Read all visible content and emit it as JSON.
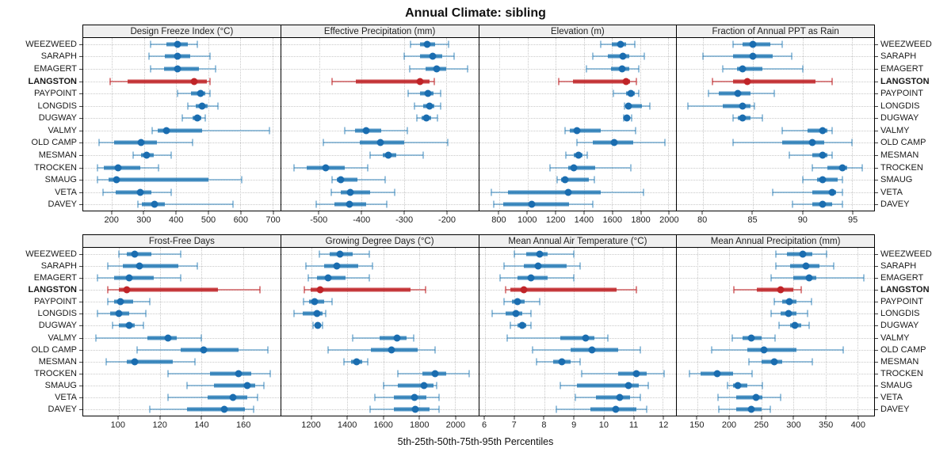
{
  "title": "Annual Climate: sibling",
  "xlabel": "5th-25th-50th-75th-95th Percentiles",
  "chart_data": {
    "type": "dot-whisker-percentile-trellis",
    "title": "Annual Climate: sibling",
    "xlabel": "5th-25th-50th-75th-95th Percentiles",
    "percentile_levels": [
      5,
      25,
      50,
      75,
      95
    ],
    "layout": {
      "rows": 2,
      "cols": 4,
      "grid": "dotted",
      "legend": "none"
    },
    "colors": {
      "series_dot": "#1a6db0",
      "series_box": "rgba(31,119,180,0.8)",
      "series_whisker": "rgba(31,119,180,0.45)",
      "highlight_dot": "#c02428",
      "highlight_box": "rgba(192,36,40,0.85)",
      "highlight_whisker": "rgba(192,36,40,0.55)",
      "strip_bg": "#f0f0f0",
      "grid": "#c9c9c9"
    },
    "sites": [
      "WEEZWEED",
      "SARAPH",
      "EMAGERT",
      "LANGSTON",
      "PAYPOINT",
      "LONGDIS",
      "DUGWAY",
      "VALMY",
      "OLD CAMP",
      "MESMAN",
      "TROCKEN",
      "SMAUG",
      "VETA",
      "DAVEY"
    ],
    "highlight_site": "LANGSTON",
    "panels": [
      {
        "title": "Design Freeze Index (°C)",
        "xlim": [
          110,
          725
        ],
        "ticks": [
          200,
          300,
          400,
          500,
          600,
          700
        ],
        "values": [
          [
            320,
            370,
            405,
            437,
            465
          ],
          [
            315,
            365,
            405,
            445,
            505
          ],
          [
            320,
            362,
            405,
            470,
            523
          ],
          [
            195,
            248,
            455,
            495,
            505
          ],
          [
            405,
            447,
            475,
            490,
            505
          ],
          [
            437,
            462,
            480,
            497,
            530
          ],
          [
            420,
            450,
            466,
            478,
            490
          ],
          [
            325,
            342,
            370,
            480,
            690
          ],
          [
            160,
            207,
            290,
            340,
            450
          ],
          [
            265,
            290,
            307,
            330,
            385
          ],
          [
            155,
            175,
            220,
            288,
            345
          ],
          [
            155,
            190,
            215,
            500,
            605
          ],
          [
            172,
            212,
            287,
            322,
            385
          ],
          [
            280,
            292,
            333,
            365,
            578
          ]
        ]
      },
      {
        "title": "Effective Precipitation (mm)",
        "xlim": [
          -590,
          -125
        ],
        "ticks": [
          -500,
          -400,
          -300,
          -200
        ],
        "values": [
          [
            -285,
            -262,
            -245,
            -226,
            -196
          ],
          [
            -300,
            -262,
            -232,
            -210,
            -182
          ],
          [
            -286,
            -250,
            -224,
            -200,
            -150
          ],
          [
            -470,
            -413,
            -262,
            -240,
            -228
          ],
          [
            -290,
            -262,
            -243,
            -230,
            -214
          ],
          [
            -276,
            -254,
            -240,
            -229,
            -214
          ],
          [
            -270,
            -258,
            -247,
            -237,
            -222
          ],
          [
            -440,
            -416,
            -390,
            -354,
            -292
          ],
          [
            -490,
            -405,
            -355,
            -300,
            -197
          ],
          [
            -380,
            -350,
            -337,
            -318,
            -255
          ],
          [
            -560,
            -530,
            -485,
            -440,
            -385
          ],
          [
            -470,
            -458,
            -450,
            -410,
            -345
          ],
          [
            -472,
            -450,
            -427,
            -380,
            -322
          ],
          [
            -508,
            -465,
            -428,
            -390,
            -340
          ]
        ]
      },
      {
        "title": "Elevation (m)",
        "xlim": [
          655,
          2055
        ],
        "ticks": [
          800,
          1000,
          1200,
          1400,
          1600,
          1800,
          2000
        ],
        "values": [
          [
            1520,
            1600,
            1660,
            1700,
            1760
          ],
          [
            1460,
            1570,
            1675,
            1720,
            1830
          ],
          [
            1420,
            1590,
            1670,
            1720,
            1790
          ],
          [
            1220,
            1320,
            1700,
            1725,
            1770
          ],
          [
            1610,
            1700,
            1735,
            1760,
            1790
          ],
          [
            1690,
            1700,
            1718,
            1810,
            1870
          ],
          [
            1680,
            1692,
            1702,
            1716,
            1736
          ],
          [
            1265,
            1300,
            1350,
            1520,
            1765
          ],
          [
            1350,
            1460,
            1615,
            1750,
            1975
          ],
          [
            1270,
            1330,
            1360,
            1392,
            1422
          ],
          [
            1160,
            1290,
            1330,
            1480,
            1730
          ],
          [
            1212,
            1240,
            1265,
            1437,
            1474
          ],
          [
            744,
            862,
            1287,
            1517,
            1824
          ],
          [
            757,
            828,
            1029,
            1296,
            1461
          ]
        ]
      },
      {
        "title": "Fraction of Annual PPT as Rain",
        "xlim": [
          77.4,
          97.2
        ],
        "ticks": [
          80,
          85,
          90,
          95
        ],
        "values": [
          [
            83,
            84,
            85,
            86.8,
            88
          ],
          [
            80,
            83,
            85,
            87,
            88.9
          ],
          [
            82,
            83.4,
            84,
            86,
            90
          ],
          [
            81,
            83,
            84.5,
            91.3,
            93
          ],
          [
            80.6,
            81.6,
            83.5,
            84.8,
            87.2
          ],
          [
            78.5,
            82,
            84,
            84.8,
            85.2
          ],
          [
            83,
            83.5,
            84,
            84.8,
            86
          ],
          [
            88,
            90.5,
            92,
            92.5,
            93
          ],
          [
            83,
            88,
            91,
            92.2,
            95
          ],
          [
            88.7,
            91,
            92,
            92.5,
            93
          ],
          [
            91,
            92.5,
            94,
            94.5,
            96
          ],
          [
            90,
            91.5,
            92,
            93.5,
            94
          ],
          [
            87,
            91,
            93,
            93.4,
            94
          ],
          [
            89,
            91,
            92,
            93,
            94
          ]
        ]
      },
      {
        "title": "Frost-Free Days",
        "xlim": [
          83,
          178
        ],
        "ticks": [
          100,
          120,
          140,
          160
        ],
        "values": [
          [
            100,
            104,
            108,
            116,
            130
          ],
          [
            95,
            102,
            110,
            129,
            138
          ],
          [
            90,
            98,
            105,
            117,
            130
          ],
          [
            95,
            100,
            104,
            148,
            168
          ],
          [
            95,
            98,
            101,
            107,
            115
          ],
          [
            90,
            96,
            100,
            105,
            113
          ],
          [
            97,
            100,
            105,
            108,
            112
          ],
          [
            89,
            114,
            124,
            128,
            140
          ],
          [
            109,
            130,
            141,
            158,
            172
          ],
          [
            94,
            104,
            108,
            126,
            137
          ],
          [
            124,
            144,
            158,
            164,
            173
          ],
          [
            133,
            146,
            162,
            166,
            170
          ],
          [
            124,
            143,
            155,
            162,
            167
          ],
          [
            115,
            133,
            151,
            161,
            165
          ]
        ]
      },
      {
        "title": "Growing Degree Days (°C)",
        "xlim": [
          1030,
          2130
        ],
        "ticks": [
          1200,
          1400,
          1600,
          1800,
          2000
        ],
        "values": [
          [
            1245,
            1300,
            1360,
            1430,
            1520
          ],
          [
            1170,
            1270,
            1340,
            1460,
            1540
          ],
          [
            1180,
            1230,
            1290,
            1390,
            1520
          ],
          [
            1160,
            1195,
            1246,
            1750,
            1835
          ],
          [
            1157,
            1184,
            1216,
            1268,
            1312
          ],
          [
            1100,
            1150,
            1228,
            1262,
            1280
          ],
          [
            1206,
            1222,
            1234,
            1250,
            1261
          ],
          [
            1430,
            1580,
            1675,
            1730,
            1770
          ],
          [
            1290,
            1530,
            1645,
            1790,
            1890
          ],
          [
            1380,
            1420,
            1450,
            1480,
            1515
          ],
          [
            1680,
            1820,
            1890,
            1950,
            2080
          ],
          [
            1600,
            1680,
            1825,
            1880,
            1900
          ],
          [
            1555,
            1660,
            1775,
            1840,
            1910
          ],
          [
            1525,
            1660,
            1780,
            1860,
            1910
          ]
        ]
      },
      {
        "title": "Mean Annual Air Temperature (°C)",
        "xlim": [
          5.8,
          12.45
        ],
        "ticks": [
          6,
          7,
          8,
          9,
          10,
          11,
          12
        ],
        "values": [
          [
            7.0,
            7.4,
            7.85,
            8.1,
            9.0
          ],
          [
            6.65,
            7.3,
            7.8,
            8.75,
            9.2
          ],
          [
            6.5,
            7.1,
            7.55,
            8.1,
            9.0
          ],
          [
            6.7,
            6.85,
            7.3,
            10.45,
            11.1
          ],
          [
            6.65,
            6.9,
            7.1,
            7.35,
            7.85
          ],
          [
            6.25,
            6.7,
            7.05,
            7.25,
            7.55
          ],
          [
            6.85,
            7.1,
            7.25,
            7.4,
            7.55
          ],
          [
            6.75,
            8.55,
            9.4,
            9.7,
            10.15
          ],
          [
            7.6,
            8.9,
            9.6,
            10.5,
            11.25
          ],
          [
            7.75,
            8.3,
            8.6,
            8.9,
            9.2
          ],
          [
            9.25,
            10.5,
            11.1,
            11.45,
            12.05
          ],
          [
            8.55,
            9.1,
            10.85,
            11.2,
            11.5
          ],
          [
            9.05,
            9.75,
            10.55,
            10.9,
            11.25
          ],
          [
            8.4,
            9.55,
            10.4,
            11.1,
            11.45
          ]
        ]
      },
      {
        "title": "Mean Annual Precipitation (mm)",
        "xlim": [
          118,
          426
        ],
        "ticks": [
          150,
          200,
          250,
          300,
          350,
          400
        ],
        "values": [
          [
            272,
            290,
            315,
            330,
            352
          ],
          [
            272,
            295,
            320,
            340,
            363
          ],
          [
            265,
            300,
            325,
            336,
            410
          ],
          [
            207,
            243,
            280,
            300,
            312
          ],
          [
            270,
            282,
            293,
            305,
            328
          ],
          [
            265,
            280,
            292,
            305,
            322
          ],
          [
            278,
            295,
            302,
            312,
            325
          ],
          [
            204,
            220,
            234,
            250,
            271
          ],
          [
            172,
            228,
            254,
            305,
            378
          ],
          [
            230,
            250,
            270,
            282,
            330
          ],
          [
            138,
            155,
            181,
            205,
            235
          ],
          [
            197,
            205,
            213,
            228,
            252
          ],
          [
            182,
            210,
            242,
            252,
            280
          ],
          [
            183,
            210,
            234,
            250,
            264
          ]
        ]
      }
    ]
  }
}
